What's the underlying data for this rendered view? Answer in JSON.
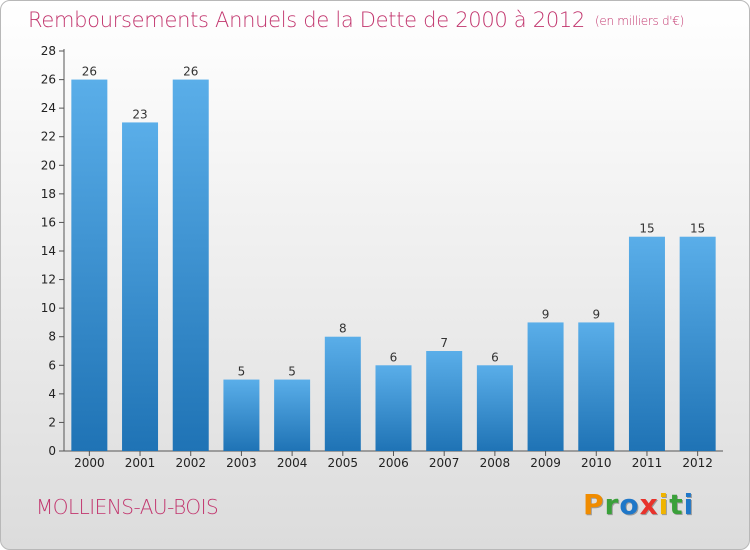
{
  "header": {
    "title": "Remboursements Annuels de la Dette de 2000 à 2012",
    "unit": "(en milliers d'€)"
  },
  "footer": {
    "commune": "MOLLIENS-AU-BOIS",
    "logo_letters": [
      "P",
      "r",
      "o",
      "x",
      "i",
      "t",
      "i"
    ]
  },
  "colors": {
    "title": "#c2366e",
    "bar_top": "#5aaee9",
    "bar_bottom": "#1f73b5",
    "logo": [
      "#f08c00",
      "#3aa03a",
      "#1f77c8",
      "#e8322b",
      "#f0b400",
      "#3aa03a",
      "#1f77c8"
    ]
  },
  "chart_data": {
    "type": "bar",
    "categories": [
      "2000",
      "2001",
      "2002",
      "2003",
      "2004",
      "2005",
      "2006",
      "2007",
      "2008",
      "2009",
      "2010",
      "2011",
      "2012"
    ],
    "values": [
      26,
      23,
      26,
      5,
      5,
      8,
      6,
      7,
      6,
      9,
      9,
      15,
      15
    ],
    "ylim": [
      0,
      28
    ],
    "yticks": [
      0,
      2,
      4,
      6,
      8,
      10,
      12,
      14,
      16,
      18,
      20,
      22,
      24,
      26,
      28
    ],
    "grid": false,
    "data_labels": true
  }
}
